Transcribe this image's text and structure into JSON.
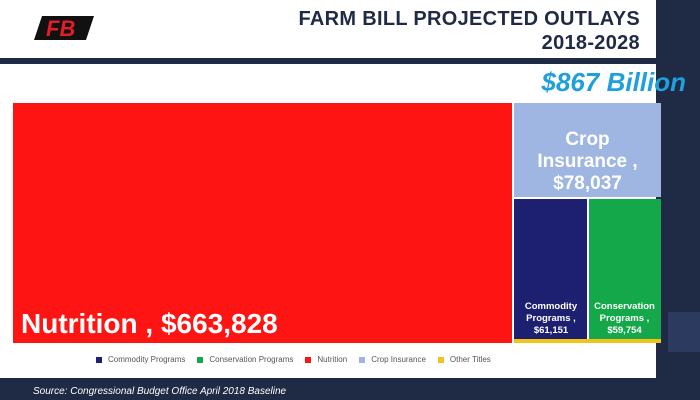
{
  "header": {
    "title_line1": "FARM BILL PROJECTED OUTLAYS",
    "title_line2": "2018-2028",
    "logo_text": "FB"
  },
  "total": "$867 Billion",
  "chart_data": {
    "type": "treemap",
    "total_label": "$867 Billion",
    "series": [
      {
        "name": "Nutrition",
        "value": 663828,
        "label": "Nutrition ,  $663,828",
        "color": "#ff1414"
      },
      {
        "name": "Crop Insurance",
        "value": 78037,
        "label_lines": [
          "Crop",
          "Insurance ,",
          "$78,037"
        ],
        "color": "#9fb6e3"
      },
      {
        "name": "Commodity Programs",
        "value": 61151,
        "label_lines": [
          "Commodity",
          "Programs ,",
          "$61,151"
        ],
        "color": "#1d2070"
      },
      {
        "name": "Conservation Programs",
        "value": 59754,
        "label_lines": [
          "Conservation",
          "Programs ,",
          "$59,754"
        ],
        "color": "#14a84a"
      },
      {
        "name": "Other Titles",
        "color": "#f0c419"
      }
    ],
    "legend": [
      {
        "name": "Commodity Programs",
        "color": "#1d2070"
      },
      {
        "name": "Conservation Programs",
        "color": "#14a84a"
      },
      {
        "name": "Nutrition",
        "color": "#ff1414"
      },
      {
        "name": "Crop Insurance",
        "color": "#9fb6e3"
      },
      {
        "name": "Other Titles",
        "color": "#f0c419"
      }
    ]
  },
  "footer": {
    "source": "Source: Congressional Budget Office April 2018 Baseline"
  },
  "colors": {
    "navy": "#1f2a44",
    "total_blue": "#1fa0dd"
  }
}
